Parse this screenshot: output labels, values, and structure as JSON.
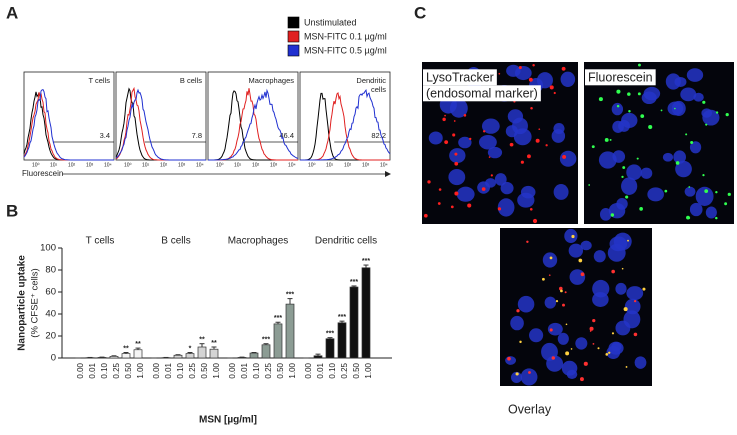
{
  "panel_labels": [
    "A",
    "B",
    "C"
  ],
  "flow_cytometry": {
    "legend": [
      {
        "name": "Unstimulated",
        "color": "#000000"
      },
      {
        "name": "MSN-FITC 0.1 µg/ml",
        "color": "#e02020"
      },
      {
        "name": "MSN-FITC 0.5 µg/ml",
        "color": "#2030d0"
      }
    ],
    "panels": [
      {
        "title": "T cells",
        "gate": 3.4
      },
      {
        "title": "B cells",
        "gate": 7.8
      },
      {
        "title": "Macrophages",
        "gate": 46.4
      },
      {
        "title": "Dendritic cells",
        "gate": 82.2
      }
    ],
    "x_label": "Fluorescein"
  },
  "chart_data": {
    "type": "bar",
    "y_label": "Nanoparticle uptake",
    "y_label_sub": "(% CFSE⁺ cells)",
    "x_label": "MSN [µg/ml]",
    "categories": [
      "0.00",
      "0.01",
      "0.10",
      "0.25",
      "0.50",
      "1.00"
    ],
    "ylim": [
      0,
      100
    ],
    "yticks": [
      0,
      20,
      40,
      60,
      80,
      100
    ],
    "series": [
      {
        "name": "T cells",
        "color": "#f4f4f4",
        "values": [
          0,
          0.3,
          0.5,
          1.5,
          4,
          7.5
        ],
        "errors": [
          0,
          0.2,
          0.3,
          0.5,
          1,
          1.5
        ],
        "significance": [
          null,
          null,
          null,
          null,
          "**",
          "**"
        ]
      },
      {
        "name": "B cells",
        "color": "#d4d4d4",
        "values": [
          0,
          0.3,
          2.5,
          4,
          10,
          8
        ],
        "errors": [
          0,
          0.2,
          0.5,
          1,
          3,
          2
        ],
        "significance": [
          null,
          null,
          null,
          "*",
          "**",
          "**"
        ]
      },
      {
        "name": "Macrophages",
        "color": "#8c9c94",
        "values": [
          0,
          0.5,
          4.5,
          12,
          31,
          49
        ],
        "errors": [
          0,
          0.3,
          0.5,
          1,
          1.5,
          5
        ],
        "significance": [
          null,
          null,
          null,
          "***",
          "***",
          "***"
        ]
      },
      {
        "name": "Dendritic cells",
        "color": "#111111",
        "values": [
          0,
          2,
          17.5,
          32,
          64.5,
          82
        ],
        "errors": [
          0,
          1.5,
          1,
          1.5,
          1,
          2.5
        ],
        "significance": [
          null,
          null,
          "***",
          "***",
          "***",
          "***"
        ]
      }
    ]
  },
  "microscopy": {
    "images": [
      {
        "label": "LysoTracker",
        "label_sub": "(endosomal marker)"
      },
      {
        "label": "Fluorescein"
      },
      {
        "label": "Overlay"
      }
    ]
  }
}
